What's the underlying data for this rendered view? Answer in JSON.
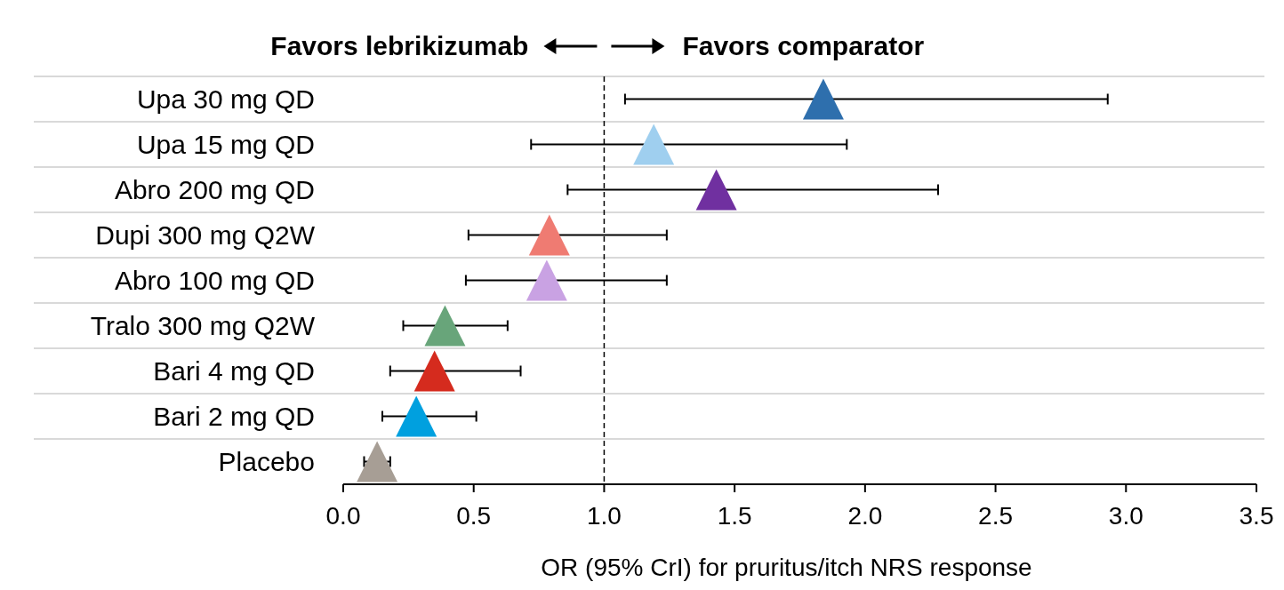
{
  "chart_data": {
    "type": "scatter",
    "orientation": "horizontal",
    "marker": "triangle",
    "grid": "y",
    "xlabel": "OR (95% CrI) for pruritus/itch NRS response",
    "categories": [
      "Upa 30 mg QD",
      "Upa 15 mg QD",
      "Abro 200 mg QD",
      "Dupi 300 mg Q2W",
      "Abro 100 mg QD",
      "Tralo 300 mg Q2W",
      "Bari 4 mg QD",
      "Bari 2 mg QD",
      "Placebo"
    ],
    "values": [
      1.84,
      1.19,
      1.43,
      0.79,
      0.78,
      0.39,
      0.35,
      0.28,
      0.13
    ],
    "errors": [
      [
        1.08,
        2.93
      ],
      [
        0.72,
        1.93
      ],
      [
        0.86,
        2.28
      ],
      [
        0.48,
        1.24
      ],
      [
        0.47,
        1.24
      ],
      [
        0.23,
        0.63
      ],
      [
        0.18,
        0.68
      ],
      [
        0.15,
        0.51
      ],
      [
        0.08,
        0.18
      ]
    ],
    "colors": [
      "#2e6fad",
      "#9fcfef",
      "#7030a0",
      "#ef7b72",
      "#c9a2e3",
      "#68a57a",
      "#d52b1e",
      "#00a0df",
      "#a79e95"
    ],
    "xlim": [
      0,
      3.5
    ],
    "xticks": [
      {
        "value": 0,
        "label": "0.0"
      },
      {
        "value": 0.5,
        "label": "0.5"
      },
      {
        "value": 1,
        "label": "1.0"
      },
      {
        "value": 1.5,
        "label": "1.5"
      },
      {
        "value": 2,
        "label": "2.0"
      },
      {
        "value": 2.5,
        "label": "2.5"
      },
      {
        "value": 3,
        "label": "3.0"
      },
      {
        "value": 3.5,
        "label": "3.5"
      }
    ],
    "ref_lines": [
      {
        "axis": "x",
        "value": 1,
        "line_style": "dashed"
      }
    ],
    "annotations": [
      "Favors lebrikizumab",
      "Favors comparator"
    ]
  }
}
